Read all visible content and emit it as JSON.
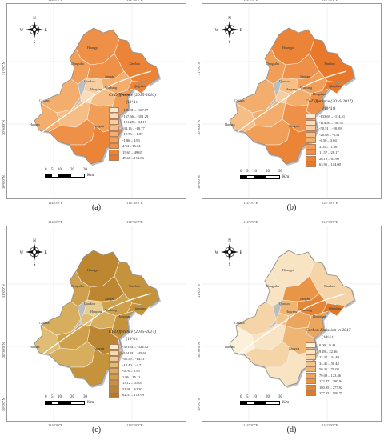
{
  "graticule": {
    "lon_left": "114°0'0\"E",
    "lon_right": "114°30'0\"E",
    "lon_right_d": "115°0'0\"E",
    "lat_top": "31°0'0\"N",
    "lat_mid": "30°30'0\"N",
    "lat_bot": "30°0'0\"N"
  },
  "compass": {
    "n": "N",
    "s": "S",
    "e": "E",
    "w": "W"
  },
  "scale": {
    "ticks": [
      "0",
      "5",
      "10",
      "20",
      "30"
    ],
    "unit": "Km"
  },
  "places": [
    "Huangpi",
    "Xinzhou",
    "Dongxihu",
    "Jiangan",
    "Qiaokou",
    "Hanyang",
    "Wuchang",
    "Qingshan",
    "Hongshan",
    "Caidian",
    "Jiangxia",
    "Hannan"
  ],
  "panels": [
    {
      "label": "(a)",
      "legend_title": "Ct-Difference (2015-2016)",
      "legend_unit": "(10^4 t)",
      "classes": [
        {
          "range": "-186.81 – -167.67",
          "color": "#fbe9d2"
        },
        {
          "range": "-167.66 – -101.29",
          "color": "#f9dcbb"
        },
        {
          "range": "-101.28 – -34.17",
          "color": "#f7cea2"
        },
        {
          "range": "-34.16 – -10.77",
          "color": "#f5be87"
        },
        {
          "range": "-10.76 – -1.87",
          "color": "#f3ae6e"
        },
        {
          "range": "-1.86 – 4.93",
          "color": "#f19f58"
        },
        {
          "range": "4.94 – 15.64",
          "color": "#ee9048"
        },
        {
          "range": "15.65 – 49.65",
          "color": "#ec8438"
        },
        {
          "range": "49.66 – 113.06",
          "color": "#e9782b"
        }
      ]
    },
    {
      "label": "(b)",
      "legend_title": "Ct-Difference (2016-2017)",
      "legend_unit": "(10^4 t)",
      "classes": [
        {
          "range": "-133.69 – -114.51",
          "color": "#fbe9d2"
        },
        {
          "range": "-114.50 – -50.52",
          "color": "#f9dcbb"
        },
        {
          "range": "-50.51 – -20.89",
          "color": "#f7cea2"
        },
        {
          "range": "-20.88 – -6.51",
          "color": "#f5be87"
        },
        {
          "range": "-6.50 – 3.04",
          "color": "#f3ae6e"
        },
        {
          "range": "3.05 – 11.56",
          "color": "#f19f58"
        },
        {
          "range": "11.57 – 26.17",
          "color": "#ee9048"
        },
        {
          "range": "26.18 – 63.90",
          "color": "#ec8438"
        },
        {
          "range": "63.91 – 114.00",
          "color": "#e9782b"
        }
      ]
    },
    {
      "label": "(c)",
      "legend_title": "Ct-Difference (2015-2017)",
      "legend_unit": "(10^4 t)",
      "classes": [
        {
          "range": "-301.31 – -124.42",
          "color": "#f6ead0"
        },
        {
          "range": "-124.41 – -45.60",
          "color": "#efdcb0"
        },
        {
          "range": "-45.59 – -14.41",
          "color": "#e7cd92"
        },
        {
          "range": "-14.40 – -4.71",
          "color": "#dfbd75"
        },
        {
          "range": "-4.70 – 2.95",
          "color": "#d7ae5e"
        },
        {
          "range": "2.96 – 15.11",
          "color": "#cfa04c"
        },
        {
          "range": "15.12 – 31.05",
          "color": "#c6933d"
        },
        {
          "range": "31.06 – 62.30",
          "color": "#bd8630"
        },
        {
          "range": "62.31 – 118.99",
          "color": "#b37a25"
        }
      ]
    },
    {
      "label": "(d)",
      "legend_title": "Carbon Emission in 2017",
      "legend_unit": "(10^4 t)",
      "classes": [
        {
          "range": "0.00 – 9.48",
          "color": "#fbf0d9"
        },
        {
          "range": "9.49 – 22.36",
          "color": "#f8e3c3"
        },
        {
          "range": "22.37 – 34.40",
          "color": "#f5d4a8"
        },
        {
          "range": "34.41 – 50.44",
          "color": "#f2c58c"
        },
        {
          "range": "50.45 – 79.08",
          "color": "#efb572"
        },
        {
          "range": "79.09 – 123.46",
          "color": "#eca55c"
        },
        {
          "range": "123.47 – 180.94",
          "color": "#e89548"
        },
        {
          "range": "180.95 – 277.92",
          "color": "#e48637"
        },
        {
          "range": "277.93 – 509.75",
          "color": "#e07829"
        }
      ]
    }
  ]
}
